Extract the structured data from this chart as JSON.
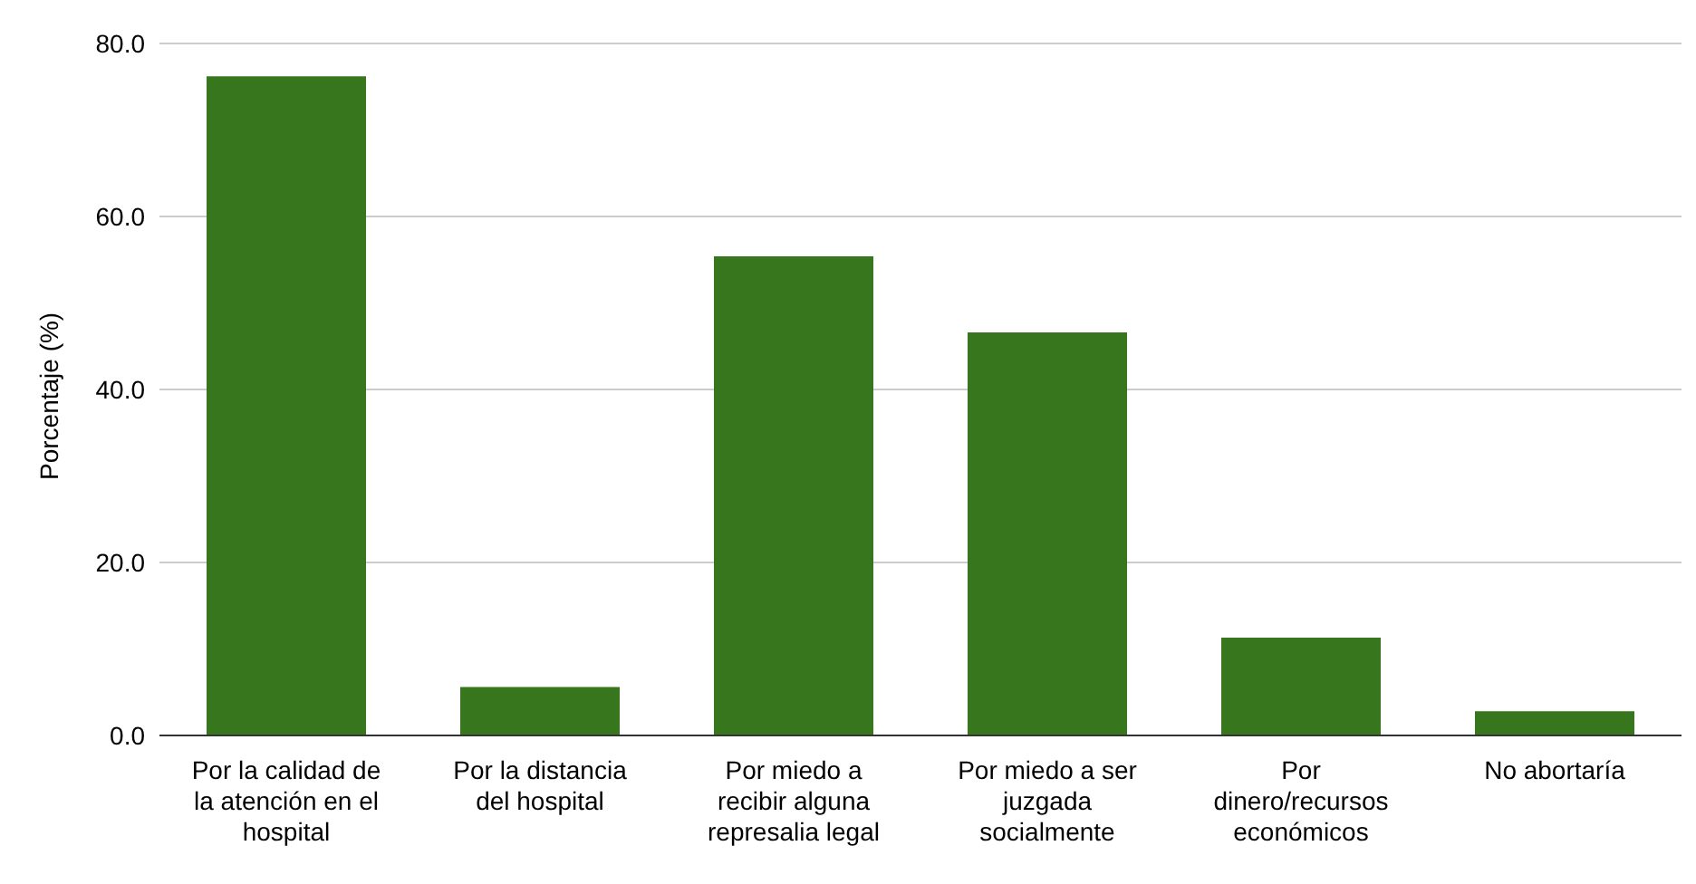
{
  "chart_data": {
    "type": "bar",
    "ylabel": "Porcentaje (%)",
    "categories": [
      "Por la calidad de la atención en el hospital",
      "Por la distancia del hospital",
      "Por miedo a recibir alguna represalia legal",
      "Por miedo a ser juzgada socialmente",
      "Por dinero/recursos económicos",
      "No abortaría"
    ],
    "values": [
      76.2,
      5.6,
      55.4,
      46.6,
      11.3,
      2.8
    ],
    "color": "#38761d",
    "ylim": [
      0,
      80
    ],
    "yticks": [
      {
        "value": 0,
        "label": "0.0"
      },
      {
        "value": 20,
        "label": "20.0"
      },
      {
        "value": 40,
        "label": "40.0"
      },
      {
        "value": 60,
        "label": "60.0"
      },
      {
        "value": 80,
        "label": "80.0"
      }
    ],
    "grid": "y"
  }
}
